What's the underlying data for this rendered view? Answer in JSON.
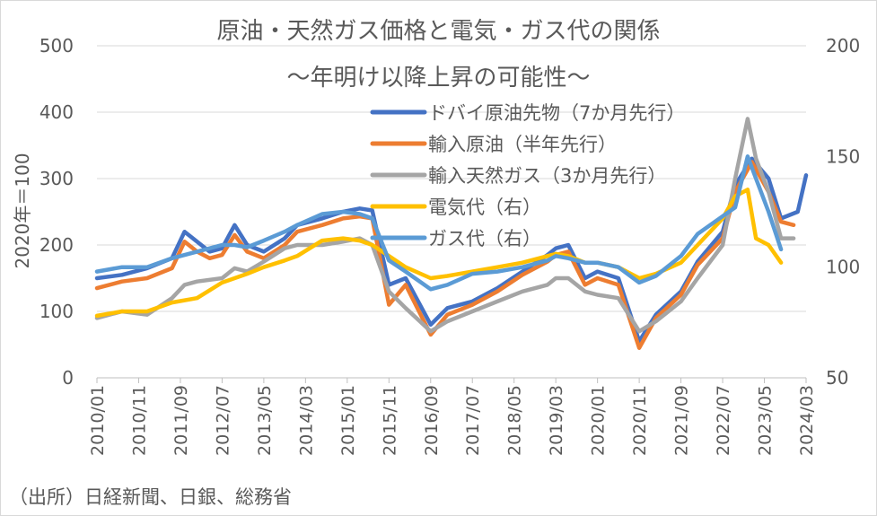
{
  "chart_data": {
    "type": "line",
    "title": "原油・天然ガス価格と電気・ガス代の関係",
    "subtitle": "〜年明け以降上昇の可能性〜",
    "ylabel": "2020年＝100",
    "ylim": [
      0,
      500
    ],
    "yticks": [
      0,
      100,
      200,
      300,
      400,
      500
    ],
    "y2lim": [
      50,
      200
    ],
    "y2ticks": [
      50,
      100,
      150,
      200
    ],
    "x_range": [
      "2010/01",
      "2024/03"
    ],
    "x_tick_labels": [
      "2010/01",
      "2010/11",
      "2011/09",
      "2012/07",
      "2013/05",
      "2014/03",
      "2015/01",
      "2015/11",
      "2016/09",
      "2017/07",
      "2018/05",
      "2019/03",
      "2020/01",
      "2020/11",
      "2021/09",
      "2022/07",
      "2023/05",
      "2024/03"
    ],
    "legend_position": "top-right",
    "source": "（出所）日経新聞、日銀、総務省",
    "series": [
      {
        "name": "ドバイ原油先物（7か月先行）",
        "axis": "left",
        "color": "#4472C4",
        "points": [
          [
            "2010/01",
            150
          ],
          [
            "2010/07",
            155
          ],
          [
            "2011/01",
            165
          ],
          [
            "2011/07",
            180
          ],
          [
            "2011/10",
            220
          ],
          [
            "2012/01",
            205
          ],
          [
            "2012/04",
            190
          ],
          [
            "2012/07",
            195
          ],
          [
            "2012/10",
            230
          ],
          [
            "2013/01",
            200
          ],
          [
            "2013/05",
            190
          ],
          [
            "2013/10",
            210
          ],
          [
            "2014/01",
            230
          ],
          [
            "2014/07",
            240
          ],
          [
            "2014/12",
            250
          ],
          [
            "2015/04",
            255
          ],
          [
            "2015/07",
            252
          ],
          [
            "2015/11",
            140
          ],
          [
            "2016/03",
            150
          ],
          [
            "2016/09",
            80
          ],
          [
            "2017/01",
            105
          ],
          [
            "2017/07",
            115
          ],
          [
            "2018/01",
            135
          ],
          [
            "2018/07",
            160
          ],
          [
            "2019/01",
            185
          ],
          [
            "2019/03",
            195
          ],
          [
            "2019/06",
            200
          ],
          [
            "2019/10",
            150
          ],
          [
            "2020/01",
            160
          ],
          [
            "2020/06",
            150
          ],
          [
            "2020/11",
            55
          ],
          [
            "2021/03",
            95
          ],
          [
            "2021/09",
            130
          ],
          [
            "2022/01",
            175
          ],
          [
            "2022/07",
            220
          ],
          [
            "2022/10",
            290
          ],
          [
            "2023/02",
            330
          ],
          [
            "2023/06",
            300
          ],
          [
            "2023/09",
            240
          ],
          [
            "2024/01",
            250
          ],
          [
            "2024/03",
            305
          ]
        ]
      },
      {
        "name": "輸入原油（半年先行）",
        "axis": "left",
        "color": "#ED7D31",
        "points": [
          [
            "2010/01",
            135
          ],
          [
            "2010/07",
            145
          ],
          [
            "2011/01",
            150
          ],
          [
            "2011/07",
            165
          ],
          [
            "2011/10",
            205
          ],
          [
            "2012/01",
            190
          ],
          [
            "2012/04",
            180
          ],
          [
            "2012/07",
            185
          ],
          [
            "2012/10",
            215
          ],
          [
            "2013/01",
            190
          ],
          [
            "2013/05",
            180
          ],
          [
            "2013/10",
            200
          ],
          [
            "2014/01",
            220
          ],
          [
            "2014/07",
            230
          ],
          [
            "2014/12",
            240
          ],
          [
            "2015/04",
            243
          ],
          [
            "2015/07",
            240
          ],
          [
            "2015/11",
            110
          ],
          [
            "2016/03",
            140
          ],
          [
            "2016/09",
            65
          ],
          [
            "2017/01",
            95
          ],
          [
            "2017/07",
            110
          ],
          [
            "2018/01",
            130
          ],
          [
            "2018/07",
            155
          ],
          [
            "2019/01",
            175
          ],
          [
            "2019/03",
            185
          ],
          [
            "2019/06",
            190
          ],
          [
            "2019/10",
            140
          ],
          [
            "2020/01",
            150
          ],
          [
            "2020/06",
            140
          ],
          [
            "2020/11",
            45
          ],
          [
            "2021/03",
            90
          ],
          [
            "2021/09",
            125
          ],
          [
            "2022/01",
            170
          ],
          [
            "2022/07",
            210
          ],
          [
            "2022/10",
            280
          ],
          [
            "2023/02",
            325
          ],
          [
            "2023/06",
            280
          ],
          [
            "2023/09",
            235
          ],
          [
            "2023/12",
            230
          ]
        ]
      },
      {
        "name": "輸入天然ガス（3か月先行）",
        "axis": "left",
        "color": "#A5A5A5",
        "points": [
          [
            "2010/01",
            90
          ],
          [
            "2010/07",
            100
          ],
          [
            "2011/01",
            95
          ],
          [
            "2011/07",
            120
          ],
          [
            "2011/10",
            140
          ],
          [
            "2012/01",
            145
          ],
          [
            "2012/07",
            150
          ],
          [
            "2012/10",
            165
          ],
          [
            "2013/01",
            160
          ],
          [
            "2013/05",
            175
          ],
          [
            "2013/10",
            195
          ],
          [
            "2014/01",
            200
          ],
          [
            "2014/07",
            200
          ],
          [
            "2014/12",
            205
          ],
          [
            "2015/04",
            210
          ],
          [
            "2015/07",
            200
          ],
          [
            "2015/11",
            130
          ],
          [
            "2016/03",
            105
          ],
          [
            "2016/09",
            70
          ],
          [
            "2017/01",
            85
          ],
          [
            "2017/07",
            100
          ],
          [
            "2018/01",
            115
          ],
          [
            "2018/07",
            130
          ],
          [
            "2019/01",
            140
          ],
          [
            "2019/03",
            150
          ],
          [
            "2019/06",
            150
          ],
          [
            "2019/10",
            130
          ],
          [
            "2020/01",
            125
          ],
          [
            "2020/06",
            120
          ],
          [
            "2020/11",
            70
          ],
          [
            "2021/03",
            85
          ],
          [
            "2021/09",
            115
          ],
          [
            "2022/01",
            150
          ],
          [
            "2022/07",
            200
          ],
          [
            "2022/10",
            300
          ],
          [
            "2023/01",
            390
          ],
          [
            "2023/03",
            330
          ],
          [
            "2023/06",
            280
          ],
          [
            "2023/09",
            210
          ],
          [
            "2023/12",
            210
          ]
        ]
      },
      {
        "name": "電気代（右）",
        "axis": "right",
        "color": "#FFC000",
        "points": [
          [
            "2010/01",
            78
          ],
          [
            "2010/07",
            80
          ],
          [
            "2011/01",
            80
          ],
          [
            "2011/07",
            84
          ],
          [
            "2012/01",
            86
          ],
          [
            "2012/07",
            93
          ],
          [
            "2012/10",
            95
          ],
          [
            "2013/01",
            97
          ],
          [
            "2013/05",
            100
          ],
          [
            "2013/10",
            103
          ],
          [
            "2014/01",
            105
          ],
          [
            "2014/07",
            112
          ],
          [
            "2014/12",
            113
          ],
          [
            "2015/04",
            112
          ],
          [
            "2015/07",
            110
          ],
          [
            "2015/11",
            105
          ],
          [
            "2016/03",
            100
          ],
          [
            "2016/09",
            95
          ],
          [
            "2017/01",
            96
          ],
          [
            "2017/07",
            98
          ],
          [
            "2018/01",
            100
          ],
          [
            "2018/07",
            102
          ],
          [
            "2019/01",
            105
          ],
          [
            "2019/03",
            106
          ],
          [
            "2019/06",
            105
          ],
          [
            "2019/10",
            102
          ],
          [
            "2020/01",
            102
          ],
          [
            "2020/06",
            100
          ],
          [
            "2020/11",
            95
          ],
          [
            "2021/03",
            97
          ],
          [
            "2021/09",
            102
          ],
          [
            "2022/01",
            110
          ],
          [
            "2022/07",
            122
          ],
          [
            "2022/10",
            132
          ],
          [
            "2023/01",
            135
          ],
          [
            "2023/03",
            113
          ],
          [
            "2023/06",
            110
          ],
          [
            "2023/09",
            102
          ]
        ]
      },
      {
        "name": "ガス代（右）",
        "axis": "right",
        "color": "#5B9BD5",
        "points": [
          [
            "2010/01",
            98
          ],
          [
            "2010/07",
            100
          ],
          [
            "2011/01",
            100
          ],
          [
            "2011/07",
            104
          ],
          [
            "2012/01",
            107
          ],
          [
            "2012/07",
            110
          ],
          [
            "2012/10",
            110
          ],
          [
            "2013/01",
            109
          ],
          [
            "2013/05",
            112
          ],
          [
            "2013/10",
            116
          ],
          [
            "2014/01",
            119
          ],
          [
            "2014/07",
            124
          ],
          [
            "2014/12",
            125
          ],
          [
            "2015/04",
            124
          ],
          [
            "2015/07",
            122
          ],
          [
            "2015/11",
            103
          ],
          [
            "2016/03",
            98
          ],
          [
            "2016/09",
            90
          ],
          [
            "2017/01",
            92
          ],
          [
            "2017/07",
            97
          ],
          [
            "2018/01",
            98
          ],
          [
            "2018/07",
            100
          ],
          [
            "2019/01",
            103
          ],
          [
            "2019/03",
            105
          ],
          [
            "2019/06",
            104
          ],
          [
            "2019/10",
            102
          ],
          [
            "2020/01",
            102
          ],
          [
            "2020/06",
            100
          ],
          [
            "2020/11",
            93
          ],
          [
            "2021/03",
            96
          ],
          [
            "2021/09",
            105
          ],
          [
            "2022/01",
            115
          ],
          [
            "2022/07",
            123
          ],
          [
            "2022/10",
            127
          ],
          [
            "2023/01",
            150
          ],
          [
            "2023/03",
            140
          ],
          [
            "2023/06",
            125
          ],
          [
            "2023/09",
            108
          ]
        ]
      }
    ]
  }
}
